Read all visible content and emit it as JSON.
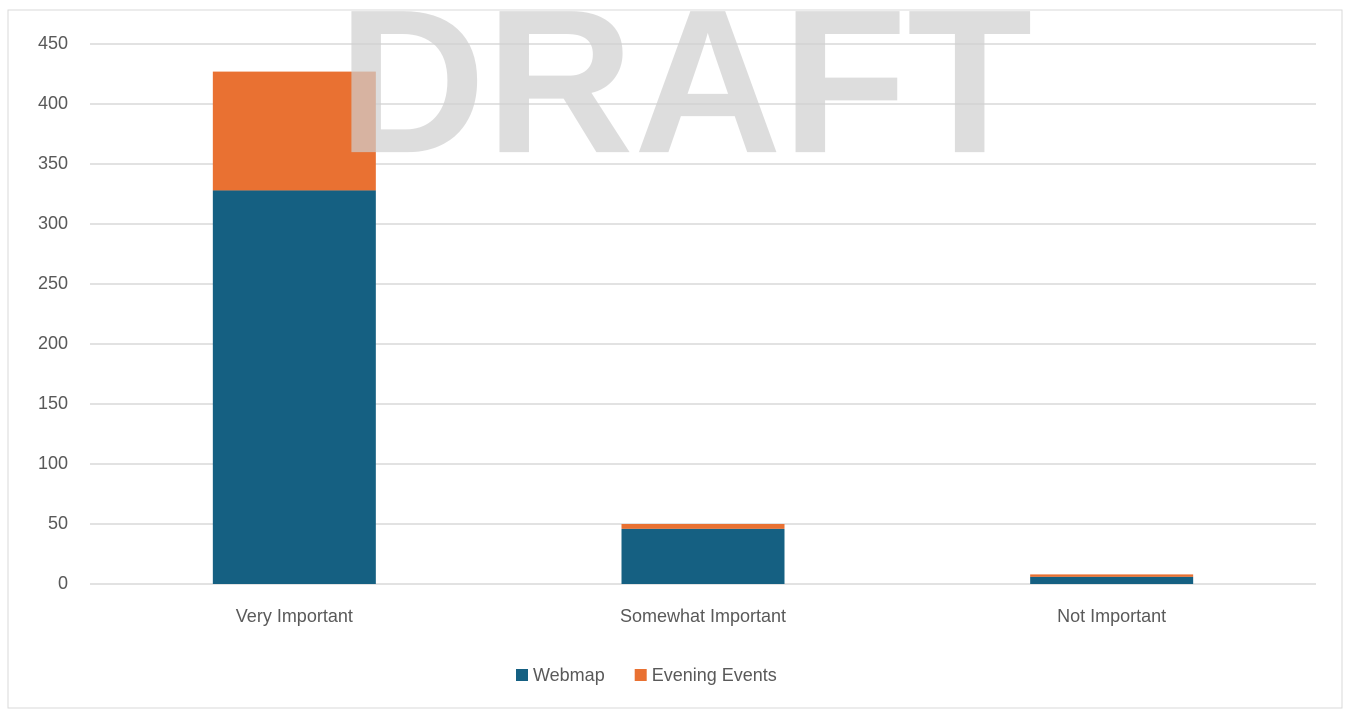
{
  "chart_data": {
    "type": "bar",
    "stacked": true,
    "watermark": "DRAFT",
    "categories": [
      "Very Important",
      "Somewhat Important",
      "Not Important"
    ],
    "series": [
      {
        "name": "Webmap",
        "color": "#156082",
        "values": [
          328,
          46,
          6
        ]
      },
      {
        "name": "Evening Events",
        "color": "#e97132",
        "values": [
          99,
          4,
          2
        ]
      }
    ],
    "ylim": [
      0,
      450
    ],
    "yticks": [
      0,
      50,
      100,
      150,
      200,
      250,
      300,
      350,
      400,
      450
    ],
    "grid": true,
    "legend": "bottom"
  }
}
